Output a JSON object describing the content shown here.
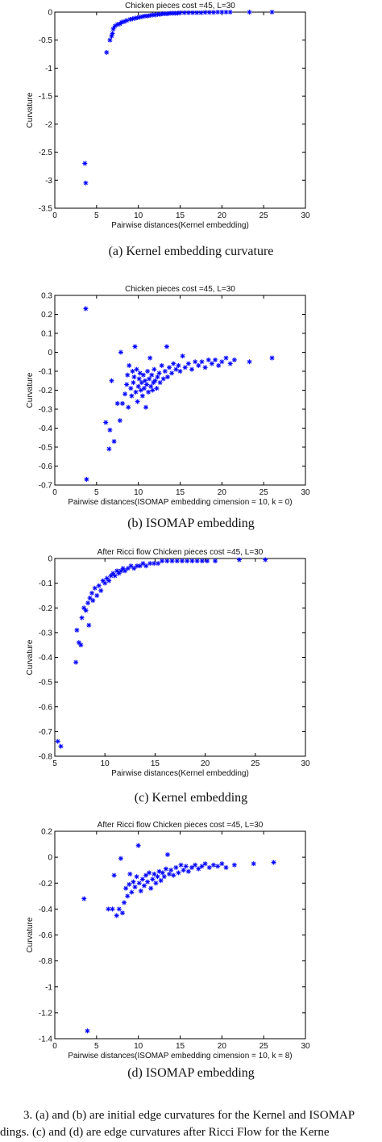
{
  "captions": [
    "(a)  Kernel embedding curvature",
    "(b)  ISOMAP embedding",
    "(c)  Kernel embedding",
    "(d)  ISOMAP embedding"
  ],
  "figure_caption": {
    "line1": "3.   (a) and (b) are initial edge curvatures for the Kernel and ISOMAP",
    "line2": "dings. (c) and (d) are edge curvatures after Ricci Flow for the Kerne"
  },
  "chart_data": [
    {
      "type": "scatter",
      "title": "Chicken pieces cost =45, L=30",
      "xlabel": "Pairwise distances(Kernel embedding)",
      "ylabel": "Curvature",
      "xlim": [
        0,
        30
      ],
      "ylim": [
        -3.5,
        0
      ],
      "xticks": [
        0,
        5,
        10,
        15,
        20,
        25,
        30
      ],
      "yticks": [
        0,
        -0.5,
        -1,
        -1.5,
        -2,
        -2.5,
        -3,
        -3.5
      ],
      "ytick_labels": [
        "0",
        "-0.5",
        "-1",
        "-1.5",
        "-2",
        "-2.5",
        "-3",
        "-3.5"
      ],
      "marker": "*",
      "color": "#0000ff",
      "points": [
        [
          3.6,
          -2.7
        ],
        [
          3.7,
          -3.05
        ],
        [
          6.2,
          -0.72
        ],
        [
          6.6,
          -0.5
        ],
        [
          6.8,
          -0.43
        ],
        [
          6.9,
          -0.38
        ],
        [
          7.0,
          -0.3
        ],
        [
          7.2,
          -0.25
        ],
        [
          7.5,
          -0.22
        ],
        [
          7.8,
          -0.21
        ],
        [
          8.0,
          -0.18
        ],
        [
          8.3,
          -0.17
        ],
        [
          8.6,
          -0.15
        ],
        [
          9.0,
          -0.13
        ],
        [
          9.3,
          -0.12
        ],
        [
          9.6,
          -0.11
        ],
        [
          9.9,
          -0.1
        ],
        [
          10.2,
          -0.09
        ],
        [
          10.5,
          -0.08
        ],
        [
          10.8,
          -0.07
        ],
        [
          11.1,
          -0.07
        ],
        [
          11.4,
          -0.06
        ],
        [
          11.7,
          -0.05
        ],
        [
          12.0,
          -0.05
        ],
        [
          12.3,
          -0.04
        ],
        [
          12.6,
          -0.04
        ],
        [
          12.9,
          -0.03
        ],
        [
          13.2,
          -0.03
        ],
        [
          13.5,
          -0.03
        ],
        [
          13.8,
          -0.02
        ],
        [
          14.1,
          -0.02
        ],
        [
          14.4,
          -0.02
        ],
        [
          14.7,
          -0.02
        ],
        [
          15.0,
          -0.01
        ],
        [
          15.5,
          -0.01
        ],
        [
          16.0,
          -0.01
        ],
        [
          16.5,
          -0.01
        ],
        [
          17.0,
          -0.01
        ],
        [
          17.5,
          -0.01
        ],
        [
          18.0,
          -0.005
        ],
        [
          18.5,
          -0.005
        ],
        [
          19.0,
          -0.005
        ],
        [
          19.5,
          0
        ],
        [
          20.0,
          0
        ],
        [
          20.5,
          0
        ],
        [
          21.0,
          0
        ],
        [
          23.3,
          0
        ],
        [
          26.0,
          0
        ]
      ]
    },
    {
      "type": "scatter",
      "title": "Chicken pieces cost =45, L=30",
      "xlabel": "Pairwise distances(ISOMAP embedding cimension = 10, k = 0)",
      "ylabel": "Curvature",
      "xlim": [
        0,
        30
      ],
      "ylim": [
        -0.7,
        0.3
      ],
      "xticks": [
        0,
        5,
        10,
        15,
        20,
        25,
        30
      ],
      "yticks": [
        0.3,
        0.2,
        0.1,
        0,
        -0.1,
        -0.2,
        -0.3,
        -0.4,
        -0.5,
        -0.6,
        -0.7
      ],
      "ytick_labels": [
        "0.3",
        "0.2",
        "0.1",
        "0",
        "-0.1",
        "-0.2",
        "-0.3",
        "-0.4",
        "-0.5",
        "-0.6",
        "-0.7"
      ],
      "marker": "*",
      "color": "#0000ff",
      "points": [
        [
          3.7,
          0.23
        ],
        [
          3.8,
          -0.67
        ],
        [
          6.1,
          -0.37
        ],
        [
          6.5,
          -0.51
        ],
        [
          6.6,
          -0.41
        ],
        [
          6.8,
          -0.15
        ],
        [
          7.1,
          -0.47
        ],
        [
          7.5,
          -0.27
        ],
        [
          7.8,
          -0.36
        ],
        [
          7.9,
          0.0
        ],
        [
          8.1,
          -0.27
        ],
        [
          8.4,
          -0.22
        ],
        [
          8.6,
          -0.17
        ],
        [
          8.7,
          -0.12
        ],
        [
          8.8,
          -0.29
        ],
        [
          8.9,
          -0.07
        ],
        [
          9.1,
          -0.19
        ],
        [
          9.2,
          -0.23
        ],
        [
          9.3,
          -0.1
        ],
        [
          9.4,
          -0.16
        ],
        [
          9.5,
          -0.13
        ],
        [
          9.6,
          0.03
        ],
        [
          9.7,
          -0.21
        ],
        [
          9.8,
          -0.09
        ],
        [
          9.9,
          -0.26
        ],
        [
          10.0,
          -0.18
        ],
        [
          10.1,
          -0.14
        ],
        [
          10.2,
          -0.11
        ],
        [
          10.3,
          -0.2
        ],
        [
          10.4,
          -0.16
        ],
        [
          10.5,
          -0.23
        ],
        [
          10.6,
          -0.12
        ],
        [
          10.7,
          -0.19
        ],
        [
          10.8,
          -0.15
        ],
        [
          10.9,
          -0.29
        ],
        [
          11.0,
          -0.17
        ],
        [
          11.1,
          -0.1
        ],
        [
          11.2,
          -0.21
        ],
        [
          11.3,
          -0.14
        ],
        [
          11.4,
          -0.03
        ],
        [
          11.5,
          -0.18
        ],
        [
          11.6,
          -0.12
        ],
        [
          11.7,
          -0.2
        ],
        [
          11.8,
          -0.16
        ],
        [
          11.9,
          -0.09
        ],
        [
          12.0,
          -0.15
        ],
        [
          12.2,
          -0.19
        ],
        [
          12.3,
          -0.13
        ],
        [
          12.5,
          -0.11
        ],
        [
          12.6,
          -0.16
        ],
        [
          12.8,
          -0.07
        ],
        [
          13.0,
          -0.14
        ],
        [
          13.2,
          -0.1
        ],
        [
          13.4,
          0.03
        ],
        [
          13.5,
          -0.13
        ],
        [
          13.7,
          -0.08
        ],
        [
          14.0,
          -0.11
        ],
        [
          14.2,
          -0.06
        ],
        [
          14.5,
          -0.09
        ],
        [
          14.8,
          -0.07
        ],
        [
          15.0,
          -0.1
        ],
        [
          15.3,
          -0.02
        ],
        [
          15.6,
          -0.08
        ],
        [
          16.0,
          -0.06
        ],
        [
          16.4,
          -0.09
        ],
        [
          16.8,
          -0.05
        ],
        [
          17.2,
          -0.07
        ],
        [
          17.6,
          -0.05
        ],
        [
          18.0,
          -0.08
        ],
        [
          18.4,
          -0.04
        ],
        [
          18.8,
          -0.06
        ],
        [
          19.2,
          -0.04
        ],
        [
          19.6,
          -0.07
        ],
        [
          20.0,
          -0.05
        ],
        [
          20.5,
          -0.03
        ],
        [
          21.0,
          -0.06
        ],
        [
          21.5,
          -0.04
        ],
        [
          23.3,
          -0.05
        ],
        [
          26.0,
          -0.03
        ]
      ]
    },
    {
      "type": "scatter",
      "title": "After Ricci flow  Chicken pieces cost =45, L=30",
      "xlabel": "Pairwise distances(Kernel embedding)",
      "ylabel": "Curvature",
      "xlim": [
        5,
        30
      ],
      "ylim": [
        -0.8,
        0
      ],
      "xticks": [
        5,
        10,
        15,
        20,
        25,
        30
      ],
      "yticks": [
        0,
        -0.1,
        -0.2,
        -0.3,
        -0.4,
        -0.5,
        -0.6,
        -0.7,
        -0.8
      ],
      "ytick_labels": [
        "0",
        "-0.1",
        "-0.2",
        "-0.3",
        "-0.4",
        "-0.5",
        "-0.6",
        "-0.7",
        "-0.8"
      ],
      "marker": "*",
      "color": "#0000ff",
      "points": [
        [
          5.3,
          -0.74
        ],
        [
          5.6,
          -0.76
        ],
        [
          7.1,
          -0.42
        ],
        [
          7.2,
          -0.29
        ],
        [
          7.4,
          -0.34
        ],
        [
          7.6,
          -0.35
        ],
        [
          7.7,
          -0.24
        ],
        [
          7.9,
          -0.2
        ],
        [
          8.1,
          -0.21
        ],
        [
          8.3,
          -0.18
        ],
        [
          8.4,
          -0.27
        ],
        [
          8.5,
          -0.16
        ],
        [
          8.7,
          -0.14
        ],
        [
          8.8,
          -0.17
        ],
        [
          9.0,
          -0.12
        ],
        [
          9.2,
          -0.15
        ],
        [
          9.4,
          -0.11
        ],
        [
          9.6,
          -0.13
        ],
        [
          9.8,
          -0.09
        ],
        [
          10.0,
          -0.1
        ],
        [
          10.2,
          -0.08
        ],
        [
          10.4,
          -0.09
        ],
        [
          10.6,
          -0.07
        ],
        [
          10.8,
          -0.06
        ],
        [
          11.0,
          -0.07
        ],
        [
          11.2,
          -0.05
        ],
        [
          11.4,
          -0.06
        ],
        [
          11.6,
          -0.05
        ],
        [
          11.8,
          -0.04
        ],
        [
          12.0,
          -0.05
        ],
        [
          12.3,
          -0.04
        ],
        [
          12.6,
          -0.03
        ],
        [
          12.9,
          -0.04
        ],
        [
          13.2,
          -0.03
        ],
        [
          13.5,
          -0.03
        ],
        [
          13.8,
          -0.02
        ],
        [
          14.1,
          -0.03
        ],
        [
          14.5,
          -0.02
        ],
        [
          14.9,
          -0.02
        ],
        [
          15.3,
          -0.02
        ],
        [
          15.7,
          -0.01
        ],
        [
          16.2,
          -0.01
        ],
        [
          16.7,
          -0.01
        ],
        [
          17.2,
          -0.01
        ],
        [
          17.7,
          -0.01
        ],
        [
          18.2,
          -0.01
        ],
        [
          18.7,
          -0.01
        ],
        [
          19.2,
          -0.01
        ],
        [
          19.7,
          -0.01
        ],
        [
          20.2,
          -0.01
        ],
        [
          21.0,
          -0.01
        ],
        [
          23.4,
          -0.005
        ],
        [
          26.0,
          -0.005
        ]
      ]
    },
    {
      "type": "scatter",
      "title": "After Ricci flow  Chicken pieces cost =45, L=30",
      "xlabel": "Pairwise distances(ISOMAP embedding cimension = 10, k = 8)",
      "ylabel": "Curvature",
      "xlim": [
        0,
        30
      ],
      "ylim": [
        -1.4,
        0.2
      ],
      "xticks": [
        0,
        5,
        10,
        15,
        20,
        25,
        30
      ],
      "yticks": [
        0.2,
        0,
        -0.2,
        -0.4,
        -0.6,
        -0.8,
        -1,
        -1.2,
        -1.4
      ],
      "ytick_labels": [
        "0.2",
        "0",
        "-0.2",
        "-0.4",
        "-0.6",
        "-0.8",
        "-1",
        "-1.2",
        "-1.4"
      ],
      "marker": "*",
      "color": "#0000ff",
      "points": [
        [
          3.5,
          -0.32
        ],
        [
          3.9,
          -1.34
        ],
        [
          6.4,
          -0.4
        ],
        [
          6.9,
          -0.4
        ],
        [
          7.1,
          -0.14
        ],
        [
          7.4,
          -0.45
        ],
        [
          7.7,
          -0.4
        ],
        [
          7.9,
          -0.01
        ],
        [
          8.1,
          -0.43
        ],
        [
          8.3,
          -0.35
        ],
        [
          8.5,
          -0.24
        ],
        [
          8.7,
          -0.3
        ],
        [
          8.9,
          -0.21
        ],
        [
          9.0,
          -0.13
        ],
        [
          9.2,
          -0.27
        ],
        [
          9.4,
          -0.19
        ],
        [
          9.6,
          -0.23
        ],
        [
          9.8,
          -0.15
        ],
        [
          10.0,
          0.09
        ],
        [
          10.1,
          -0.2
        ],
        [
          10.3,
          -0.26
        ],
        [
          10.5,
          -0.17
        ],
        [
          10.7,
          -0.22
        ],
        [
          10.9,
          -0.14
        ],
        [
          11.1,
          -0.19
        ],
        [
          11.3,
          -0.12
        ],
        [
          11.5,
          -0.24
        ],
        [
          11.7,
          -0.17
        ],
        [
          11.9,
          -0.13
        ],
        [
          12.1,
          -0.2
        ],
        [
          12.3,
          -0.15
        ],
        [
          12.5,
          -0.11
        ],
        [
          12.7,
          -0.18
        ],
        [
          12.9,
          -0.12
        ],
        [
          13.1,
          -0.15
        ],
        [
          13.3,
          -0.09
        ],
        [
          13.5,
          0.02
        ],
        [
          13.7,
          -0.13
        ],
        [
          13.9,
          -0.1
        ],
        [
          14.2,
          -0.14
        ],
        [
          14.5,
          -0.08
        ],
        [
          14.8,
          -0.12
        ],
        [
          15.1,
          -0.06
        ],
        [
          15.4,
          -0.1
        ],
        [
          15.7,
          -0.07
        ],
        [
          16.0,
          -0.11
        ],
        [
          16.4,
          -0.08
        ],
        [
          16.8,
          -0.06
        ],
        [
          17.2,
          -0.09
        ],
        [
          17.6,
          -0.07
        ],
        [
          18.0,
          -0.05
        ],
        [
          18.5,
          -0.08
        ],
        [
          19.0,
          -0.06
        ],
        [
          19.5,
          -0.07
        ],
        [
          20.0,
          -0.05
        ],
        [
          20.5,
          -0.08
        ],
        [
          21.5,
          -0.06
        ],
        [
          23.8,
          -0.05
        ],
        [
          26.2,
          -0.04
        ]
      ]
    }
  ]
}
